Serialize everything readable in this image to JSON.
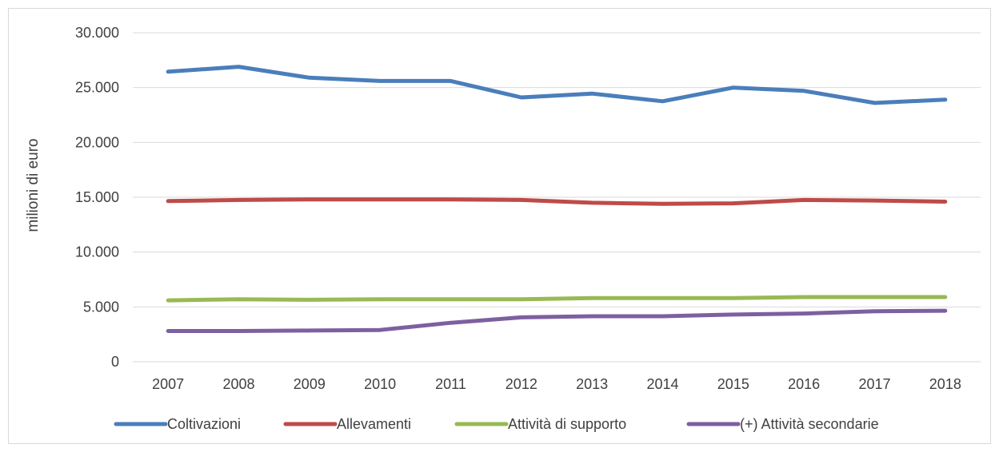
{
  "chart_data": {
    "type": "line",
    "title": "",
    "xlabel": "",
    "ylabel": "milioni di euro",
    "categories": [
      "2007",
      "2008",
      "2009",
      "2010",
      "2011",
      "2012",
      "2013",
      "2014",
      "2015",
      "2016",
      "2017",
      "2018"
    ],
    "y_ticks": [
      "0",
      "5.000",
      "10.000",
      "15.000",
      "20.000",
      "25.000",
      "30.000"
    ],
    "ylim": [
      0,
      30000
    ],
    "grid": true,
    "legend_position": "bottom",
    "series": [
      {
        "name": "Coltivazioni",
        "color": "#4a7ebb",
        "values": [
          26450,
          26900,
          25900,
          25600,
          25600,
          24100,
          24450,
          23750,
          25000,
          24700,
          23600,
          23900
        ]
      },
      {
        "name": "Allevamenti",
        "color": "#be4b48",
        "values": [
          14650,
          14750,
          14800,
          14800,
          14800,
          14750,
          14500,
          14400,
          14450,
          14750,
          14700,
          14600
        ]
      },
      {
        "name": "Attività di supporto",
        "color": "#98b954",
        "values": [
          5600,
          5700,
          5650,
          5700,
          5700,
          5700,
          5800,
          5800,
          5800,
          5900,
          5900,
          5900
        ]
      },
      {
        "name": "(+) Attività secondarie",
        "color": "#7d60a0",
        "values": [
          2800,
          2800,
          2850,
          2900,
          3550,
          4050,
          4150,
          4150,
          4300,
          4400,
          4600,
          4650
        ]
      }
    ]
  }
}
